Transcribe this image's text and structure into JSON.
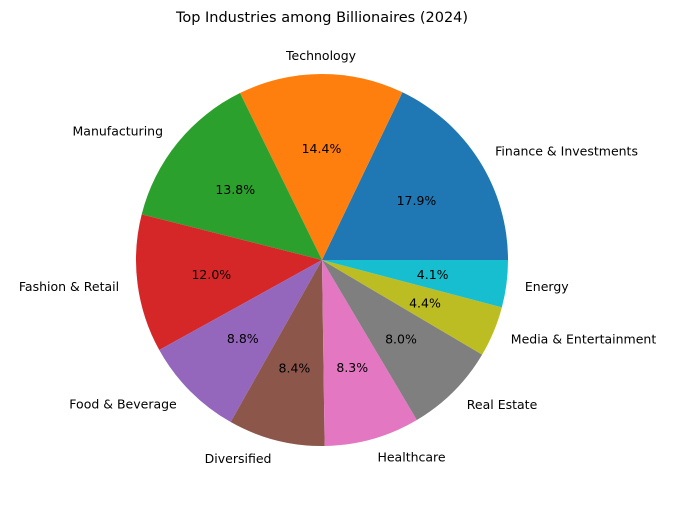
{
  "chart_data": {
    "type": "pie",
    "title": "Top Industries among Billionaires (2024)",
    "categories": [
      "Finance & Investments",
      "Technology",
      "Manufacturing",
      "Fashion & Retail",
      "Food & Beverage",
      "Diversified",
      "Healthcare",
      "Real Estate",
      "Media & Entertainment",
      "Energy"
    ],
    "values": [
      17.9,
      14.4,
      13.8,
      12.0,
      8.8,
      8.4,
      8.3,
      8.0,
      4.4,
      4.1
    ],
    "percent_labels": [
      "17.9%",
      "14.4%",
      "13.8%",
      "12.0%",
      "8.8%",
      "8.4%",
      "8.3%",
      "8.0%",
      "4.4%",
      "4.1%"
    ],
    "colors": [
      "#1f77b4",
      "#ff7f0e",
      "#2ca02c",
      "#d62728",
      "#9467bd",
      "#8c564b",
      "#e377c2",
      "#7f7f7f",
      "#bcbd22",
      "#17becf"
    ],
    "start_angle_deg": 0,
    "direction": "counterclockwise"
  }
}
